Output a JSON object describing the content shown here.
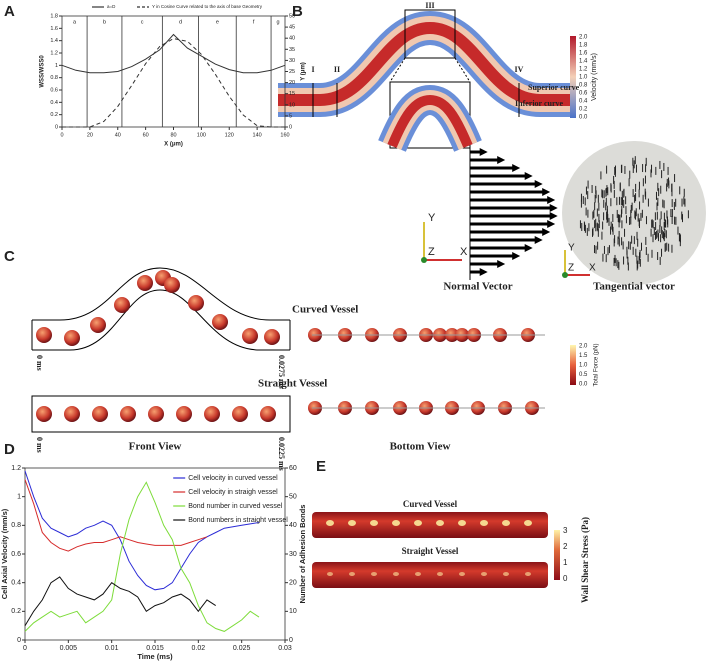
{
  "panel_labels": [
    "A",
    "B",
    "C",
    "D",
    "E"
  ],
  "chart_data": [
    {
      "type": "line",
      "xlabel": "X (μm)",
      "ylabel": "WSS/WSS0",
      "y2label": "Y (μm)",
      "x": [
        0,
        10,
        20,
        30,
        40,
        50,
        60,
        70,
        80,
        90,
        100,
        110,
        120,
        130,
        140,
        150,
        160
      ],
      "xlim": [
        0,
        160
      ],
      "xticks": [
        0,
        20,
        40,
        60,
        80,
        100,
        120,
        140,
        160
      ],
      "ylim": [
        0,
        1.8
      ],
      "yticks": [
        0,
        0.2,
        0.4,
        0.6,
        0.8,
        1,
        1.2,
        1.4,
        1.6,
        1.8
      ],
      "y2lim": [
        0,
        50
      ],
      "y2ticks": [
        0,
        5,
        10,
        15,
        20,
        25,
        30,
        35,
        40,
        45,
        50
      ],
      "legend": "top",
      "sections": {
        "labels": [
          "a",
          "b",
          "c",
          "d",
          "e",
          "f",
          "g"
        ],
        "boundaries": [
          18,
          43,
          72,
          98,
          125,
          150
        ]
      },
      "series": [
        {
          "name": "a=D",
          "color": "#333333",
          "line_style": "solid",
          "values": [
            1.0,
            0.92,
            0.88,
            0.88,
            0.9,
            0.98,
            1.1,
            1.25,
            1.5,
            1.28,
            1.15,
            1.02,
            0.93,
            0.88,
            0.88,
            0.92,
            1.0
          ]
        },
        {
          "name": "Y in Cosine Curve related to the axis of base Geometry",
          "color": "#333333",
          "line_style": "dashed",
          "axis": "y2",
          "values": [
            0,
            0,
            0,
            2.5,
            9.3,
            18.7,
            28.5,
            36.2,
            39.8,
            38.6,
            32.7,
            23.8,
            13.8,
            5.4,
            0.6,
            0,
            0
          ]
        }
      ]
    },
    {
      "type": "line",
      "xlabel": "Time (ms)",
      "ylabel": "Cell Axial Velocity (mm/s)",
      "y2label": "Number of Adhesion Bonds",
      "x": [
        0,
        0.001,
        0.002,
        0.003,
        0.004,
        0.005,
        0.006,
        0.007,
        0.008,
        0.009,
        0.01,
        0.011,
        0.012,
        0.013,
        0.014,
        0.015,
        0.016,
        0.017,
        0.018,
        0.019,
        0.02,
        0.021,
        0.022,
        0.023,
        0.024,
        0.025,
        0.026,
        0.027
      ],
      "xlim": [
        0,
        0.03
      ],
      "xticks": [
        0,
        0.005,
        0.01,
        0.015,
        0.02,
        0.025,
        0.03
      ],
      "ylim": [
        0,
        1.2
      ],
      "yticks": [
        0,
        0.2,
        0.4,
        0.6,
        0.8,
        1,
        1.2
      ],
      "y2lim": [
        0,
        60
      ],
      "y2ticks": [
        0,
        10,
        20,
        30,
        40,
        50,
        60
      ],
      "legend": "top-right",
      "series": [
        {
          "name": "Cell velocity in curved vessel",
          "color": "#2b2bd6",
          "line_style": "solid",
          "values": [
            1.18,
            1.0,
            0.85,
            0.78,
            0.75,
            0.72,
            0.74,
            0.78,
            0.8,
            0.83,
            0.8,
            0.7,
            0.55,
            0.45,
            0.38,
            0.35,
            0.36,
            0.4,
            0.5,
            0.6,
            0.68,
            0.72,
            0.75,
            0.78,
            0.79,
            0.8,
            0.81,
            0.82
          ]
        },
        {
          "name": "Cell velocity in straigh vessel",
          "color": "#d62b2b",
          "line_style": "solid",
          "values": [
            1.12,
            0.95,
            0.75,
            0.68,
            0.64,
            0.62,
            0.65,
            0.67,
            0.68,
            0.68,
            0.7,
            0.72,
            0.7,
            0.68,
            0.67,
            0.66,
            0.66,
            0.66,
            0.66,
            0.68,
            0.7,
            0.72,
            null,
            null,
            null,
            null,
            null,
            null
          ]
        },
        {
          "name": "Bond number in curved vessel",
          "color": "#7ddc3a",
          "line_style": "solid",
          "axis": "y2",
          "values": [
            3,
            6,
            8,
            10,
            8,
            9,
            10,
            6,
            8,
            10,
            14,
            30,
            42,
            50,
            55,
            48,
            40,
            35,
            25,
            20,
            12,
            6,
            4,
            3,
            5,
            7,
            10,
            8
          ]
        },
        {
          "name": "Bond numbers in straight vessel",
          "color": "#111111",
          "line_style": "solid",
          "axis": "y2",
          "values": [
            5,
            10,
            14,
            20,
            22,
            18,
            16,
            15,
            14,
            16,
            20,
            18,
            17,
            15,
            10,
            12,
            13,
            15,
            16,
            14,
            10,
            14,
            12,
            null,
            null,
            null,
            null,
            null
          ]
        }
      ]
    }
  ],
  "panel_b": {
    "sections": [
      "I",
      "II",
      "III",
      "IV"
    ],
    "superior": "Superior curve",
    "inferior": "Inferior curve",
    "colorbar_title": "Velocity (mm/s)",
    "colorbar_ticks": [
      "2.0",
      "1.8",
      "1.6",
      "1.4",
      "1.2",
      "1.0",
      "0.8",
      "0.6",
      "0.4",
      "0.2",
      "0.0"
    ],
    "axis_icon": [
      "Y",
      "X",
      "Z"
    ],
    "normal": "Normal Vector",
    "tangential": "Tangential vector"
  },
  "panel_c": {
    "curved": "Curved Vessel",
    "straight": "Straight Vessel",
    "start": "0 ms",
    "end_curved": "0.0275 ms",
    "end_straight": "0.0225 ms",
    "front": "Front View",
    "bottom": "Bottom View",
    "colorbar_title": "Total Force (pN)",
    "colorbar_ticks": [
      "2.0",
      "1.5",
      "1.0",
      "0.5",
      "0.0"
    ]
  },
  "panel_e": {
    "curved": "Curved Vessel",
    "straight": "Straight Vessel",
    "colorbar_title": "Wall Shear Stress (Pa)",
    "colorbar_ticks": [
      "3",
      "2",
      "1",
      "0"
    ]
  }
}
